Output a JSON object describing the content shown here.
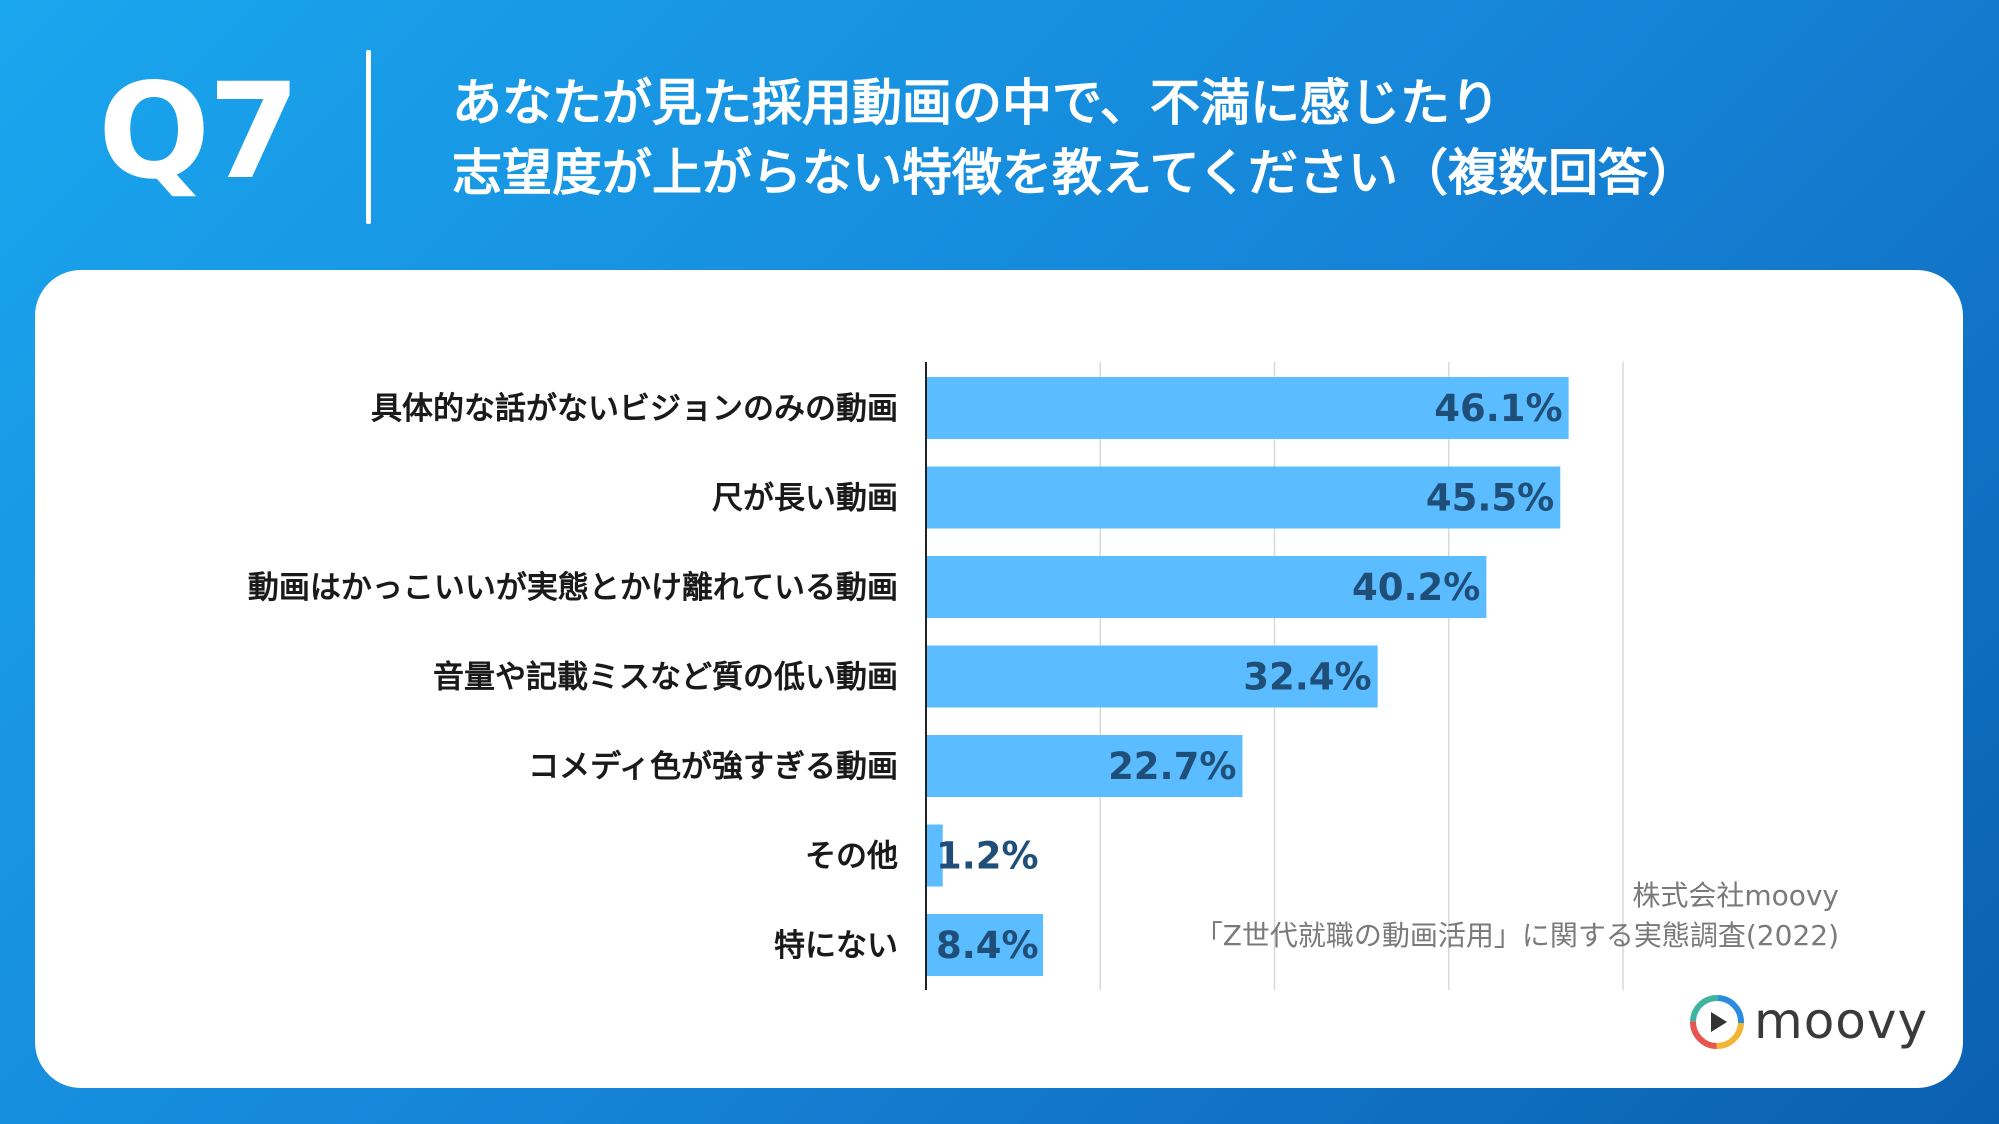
{
  "header": {
    "q_label": "Q7",
    "question_line1": "あなたが見た採用動画の中で、不満に感じたり",
    "question_line2": "志望度が上がらない特徴を教えてください（複数回答）"
  },
  "source": {
    "line1": "株式会社moovy",
    "line2": "「Z世代就職の動画活用」に関する実態調査(2022)"
  },
  "logo": {
    "text": "moovy",
    "icon": "play-circle-icon"
  },
  "colors": {
    "background_start": "#1aa6ee",
    "background_end": "#0b5fb0",
    "bar": "#5bbdff",
    "value_label": "#1f4e79",
    "category_label": "#1a1a1a"
  },
  "chart_data": {
    "type": "bar",
    "orientation": "horizontal",
    "categories": [
      "具体的な話がないビジョンのみの動画",
      "尺が長い動画",
      "動画はかっこいいが実態とかけ離れている動画",
      "音量や記載ミスなど質の低い動画",
      "コメディ色が強すぎる動画",
      "その他",
      "特にない"
    ],
    "values": [
      46.1,
      45.5,
      40.2,
      32.4,
      22.7,
      1.2,
      8.4
    ],
    "value_labels": [
      "46.1%",
      "45.5%",
      "40.2%",
      "32.4%",
      "22.7%",
      "1.2%",
      "8.4%"
    ],
    "xlim": [
      0,
      50
    ],
    "grid": true,
    "gridline_values": [
      12.5,
      25,
      37.5,
      50
    ]
  }
}
